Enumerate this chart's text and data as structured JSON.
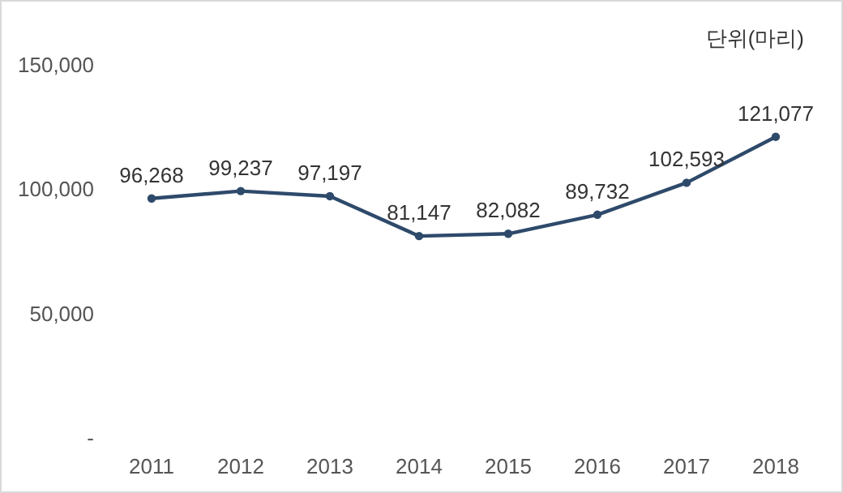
{
  "chart_data": {
    "type": "line",
    "categories": [
      "2011",
      "2012",
      "2013",
      "2014",
      "2015",
      "2016",
      "2017",
      "2018"
    ],
    "series": [
      {
        "color": "#2e4a6b",
        "values": [
          96268,
          99237,
          97197,
          81147,
          82082,
          89732,
          102593,
          121077
        ],
        "value_labels": [
          "96,268",
          "99,237",
          "97,197",
          "81,147",
          "82,082",
          "89,732",
          "102,593",
          "121,077"
        ]
      }
    ],
    "ylim": [
      0,
      150000
    ],
    "yticks": [
      {
        "value": 0,
        "label": "-"
      },
      {
        "value": 50000,
        "label": "50,000"
      },
      {
        "value": 100000,
        "label": "100,000"
      },
      {
        "value": 150000,
        "label": "150,000"
      }
    ],
    "marker": "circle",
    "line_style": "solid",
    "annotations": [
      "단위(마리)"
    ]
  }
}
